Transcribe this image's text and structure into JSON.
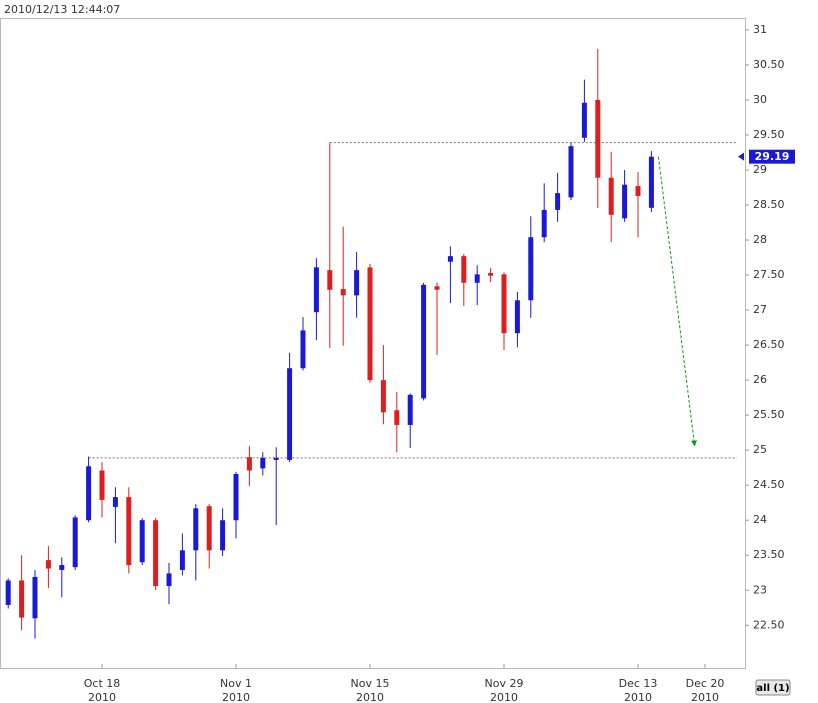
{
  "chart_data": {
    "type": "candlestick",
    "timestamp": "2010/12/13 12:44:07",
    "x": [
      "2010-10-07",
      "2010-10-08",
      "2010-10-11",
      "2010-10-12",
      "2010-10-13",
      "2010-10-14",
      "2010-10-15",
      "2010-10-18",
      "2010-10-19",
      "2010-10-20",
      "2010-10-21",
      "2010-10-22",
      "2010-10-25",
      "2010-10-26",
      "2010-10-27",
      "2010-10-28",
      "2010-10-29",
      "2010-11-01",
      "2010-11-02",
      "2010-11-03",
      "2010-11-04",
      "2010-11-05",
      "2010-11-08",
      "2010-11-09",
      "2010-11-10",
      "2010-11-11",
      "2010-11-12",
      "2010-11-15",
      "2010-11-16",
      "2010-11-17",
      "2010-11-18",
      "2010-11-19",
      "2010-11-22",
      "2010-11-23",
      "2010-11-24",
      "2010-11-25",
      "2010-11-26",
      "2010-11-29",
      "2010-11-30",
      "2010-12-01",
      "2010-12-02",
      "2010-12-03",
      "2010-12-06",
      "2010-12-07",
      "2010-12-08",
      "2010-12-09",
      "2010-12-10",
      "2010-12-13",
      "2010-12-14"
    ],
    "ohlc": {
      "open": [
        22.79,
        23.14,
        22.6,
        23.43,
        23.29,
        23.33,
        24.0,
        24.71,
        24.19,
        24.33,
        23.4,
        24.0,
        23.06,
        23.29,
        23.57,
        24.2,
        23.57,
        24.0,
        24.9,
        24.74,
        24.86,
        24.86,
        26.17,
        26.97,
        27.57,
        27.3,
        27.21,
        27.61,
        26.0,
        25.57,
        25.36,
        25.74,
        27.34,
        27.69,
        27.77,
        27.39,
        27.53,
        27.51,
        26.67,
        27.14,
        28.04,
        28.43,
        28.61,
        29.46,
        30.0,
        28.89,
        28.31,
        28.77,
        28.46
      ],
      "high": [
        23.17,
        23.5,
        23.29,
        23.63,
        23.47,
        24.07,
        24.91,
        24.83,
        24.47,
        24.47,
        24.03,
        24.03,
        23.39,
        23.81,
        24.23,
        24.23,
        24.17,
        24.69,
        25.06,
        24.97,
        25.04,
        26.39,
        26.9,
        27.74,
        29.39,
        28.19,
        27.83,
        27.66,
        26.5,
        25.83,
        25.81,
        27.39,
        27.39,
        27.91,
        27.8,
        27.64,
        27.6,
        27.54,
        27.26,
        28.34,
        28.81,
        28.96,
        29.39,
        30.29,
        30.73,
        29.26,
        29.0,
        28.97,
        29.27
      ],
      "low": [
        22.74,
        22.43,
        22.31,
        23.03,
        22.9,
        23.29,
        23.97,
        24.04,
        23.67,
        23.24,
        23.36,
        23.0,
        22.8,
        23.21,
        23.14,
        23.31,
        23.49,
        23.74,
        24.49,
        24.64,
        23.93,
        24.83,
        26.14,
        26.57,
        26.46,
        26.49,
        26.89,
        25.96,
        25.37,
        24.97,
        25.03,
        25.71,
        26.36,
        27.1,
        27.06,
        27.07,
        27.4,
        26.43,
        26.47,
        26.89,
        27.97,
        28.26,
        28.57,
        29.4,
        28.46,
        27.97,
        28.26,
        28.04,
        28.4
      ],
      "close": [
        23.14,
        22.61,
        23.19,
        23.31,
        23.36,
        24.04,
        24.77,
        24.29,
        24.33,
        23.36,
        24.0,
        23.06,
        23.24,
        23.57,
        24.17,
        23.57,
        24.0,
        24.66,
        24.71,
        24.89,
        24.89,
        26.17,
        26.71,
        27.61,
        27.29,
        27.21,
        27.57,
        26.0,
        25.54,
        25.36,
        25.79,
        27.36,
        27.29,
        27.77,
        27.39,
        27.51,
        27.49,
        26.67,
        27.14,
        28.04,
        28.43,
        28.67,
        29.34,
        29.96,
        28.89,
        28.36,
        28.79,
        28.63,
        29.19
      ]
    },
    "up_color": "#1a1ad6",
    "down_color": "#dd1f1f",
    "ylim": [
      21.89,
      31.17
    ],
    "yticks": [
      {
        "value": 22.5,
        "label": "22.50"
      },
      23,
      {
        "value": 23.5,
        "label": "23.50"
      },
      24,
      {
        "value": 24.5,
        "label": "24.50"
      },
      25,
      {
        "value": 25.5,
        "label": "25.50"
      },
      26,
      {
        "value": 26.5,
        "label": "26.50"
      },
      27,
      {
        "value": 27.5,
        "label": "27.50"
      },
      28,
      {
        "value": 28.5,
        "label": "28.50"
      },
      29,
      {
        "value": 29.5,
        "label": "29.50"
      },
      30,
      {
        "value": 30.5,
        "label": "30.50"
      },
      31
    ],
    "xticks": [
      {
        "value": "2010-10-18",
        "label": "Oct 18",
        "year": "2010"
      },
      {
        "value": "2010-11-01",
        "label": "Nov 1",
        "year": "2010"
      },
      {
        "value": "2010-11-15",
        "label": "Nov 15",
        "year": "2010"
      },
      {
        "value": "2010-11-29",
        "label": "Nov 29",
        "year": "2010"
      },
      {
        "value": "2010-12-13",
        "label": "Dec 13",
        "year": "2010"
      },
      {
        "value": "2010-12-20",
        "label": "Dec 20",
        "year": "2010"
      }
    ],
    "last_price": 29.19,
    "levels": [
      {
        "value": 29.39,
        "start": "2010-11-10",
        "color": "#777777"
      },
      {
        "value": 24.89,
        "start": "2010-10-15",
        "color": "#777777"
      }
    ],
    "projection": {
      "start": "2010-12-14",
      "end": "2010-12-17",
      "from": 29.19,
      "to": 25.07,
      "color": "#119911"
    },
    "button": "all (1)"
  }
}
